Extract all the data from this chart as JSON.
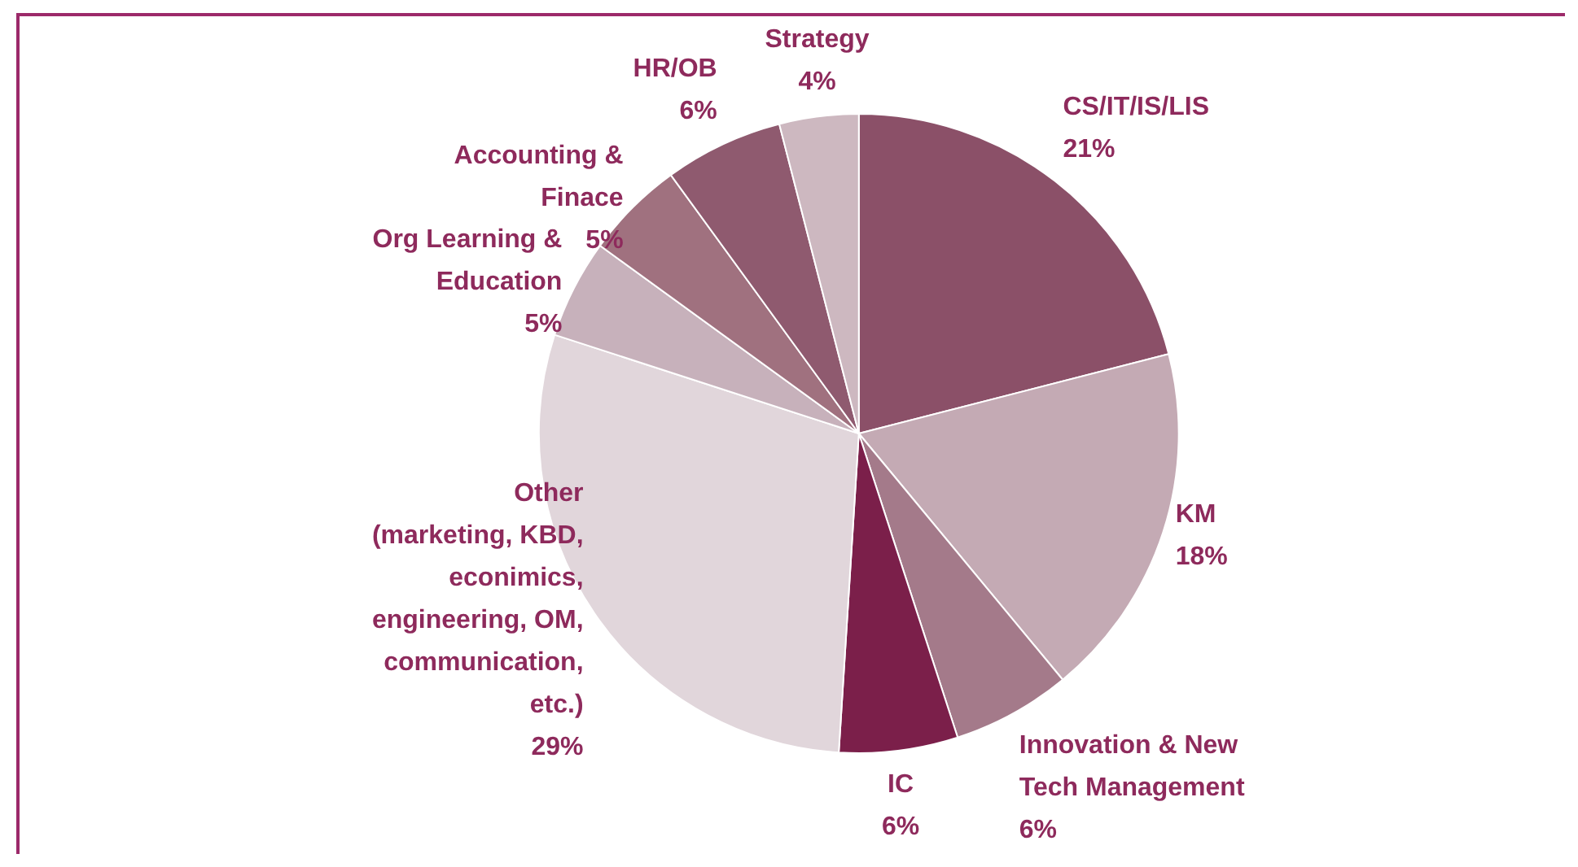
{
  "chart_data": {
    "type": "pie",
    "categories": [
      "CS/IT/IS/LIS",
      "KM",
      "Innovation & New\nTech Management",
      "IC",
      "Other\n(marketing, KBD,\neconimics,\nengineering, OM,\ncommunication,\netc.)",
      "Org Learning &\nEducation",
      "Accounting &\nFinace",
      "HR/OB",
      "Strategy"
    ],
    "values": [
      21,
      18,
      6,
      6,
      29,
      5,
      5,
      6,
      4
    ],
    "value_labels": [
      "21%",
      "18%",
      "6%",
      "6%",
      "29%",
      "5%",
      "5%",
      "6%",
      "4%"
    ],
    "colors": [
      "#8b5068",
      "#c4aab4",
      "#a47a8a",
      "#7b1f4a",
      "#e1d6db",
      "#c7b1bb",
      "#a0717f",
      "#8f5a6f",
      "#cdb8c0"
    ],
    "legend": false
  }
}
